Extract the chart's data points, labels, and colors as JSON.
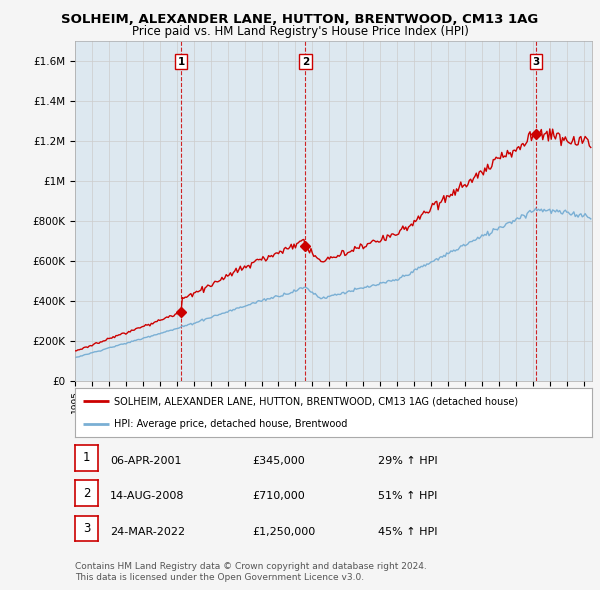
{
  "title": "SOLHEIM, ALEXANDER LANE, HUTTON, BRENTWOOD, CM13 1AG",
  "subtitle": "Price paid vs. HM Land Registry's House Price Index (HPI)",
  "x_start_year": 1995,
  "x_end_year": 2025,
  "y_max": 1700000,
  "y_ticks": [
    0,
    200000,
    400000,
    600000,
    800000,
    1000000,
    1200000,
    1400000,
    1600000
  ],
  "y_tick_labels": [
    "£0",
    "£200K",
    "£400K",
    "£600K",
    "£800K",
    "£1M",
    "£1.2M",
    "£1.4M",
    "£1.6M"
  ],
  "sale_times": [
    2001.25,
    2008.583,
    2022.2
  ],
  "sale_prices": [
    345000,
    710000,
    1250000
  ],
  "sale_labels": [
    "1",
    "2",
    "3"
  ],
  "red_line_color": "#cc0000",
  "blue_line_color": "#7aafd4",
  "grid_color": "#cccccc",
  "background_color": "#f5f5f5",
  "plot_bg_color": "#dde8f0",
  "legend_label_red": "SOLHEIM, ALEXANDER LANE, HUTTON, BRENTWOOD, CM13 1AG (detached house)",
  "legend_label_blue": "HPI: Average price, detached house, Brentwood",
  "table_rows": [
    {
      "num": "1",
      "date": "06-APR-2001",
      "price": "£345,000",
      "pct": "29% ↑ HPI"
    },
    {
      "num": "2",
      "date": "14-AUG-2008",
      "price": "£710,000",
      "pct": "51% ↑ HPI"
    },
    {
      "num": "3",
      "date": "24-MAR-2022",
      "price": "£1,250,000",
      "pct": "45% ↑ HPI"
    }
  ],
  "footer": "Contains HM Land Registry data © Crown copyright and database right 2024.\nThis data is licensed under the Open Government Licence v3.0."
}
